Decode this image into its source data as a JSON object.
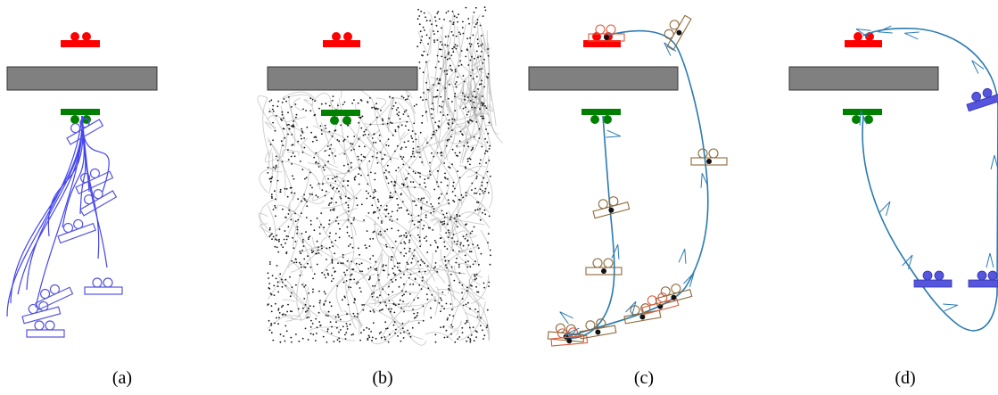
{
  "panels": [
    {
      "id": "a",
      "caption": "(a)"
    },
    {
      "id": "b",
      "caption": "(b)"
    },
    {
      "id": "c",
      "caption": "(c)"
    },
    {
      "id": "d",
      "caption": "(d)"
    }
  ],
  "colors": {
    "goal": "#ff0000",
    "start": "#008000",
    "wall": "#808080",
    "rollout": "#4444ee",
    "tree": "#9a9a9a",
    "path": "#2a7ab0",
    "pose_brown": "#8b6a3a",
    "pose_red": "#e05a3a",
    "pose_blue": "#5555dd"
  }
}
